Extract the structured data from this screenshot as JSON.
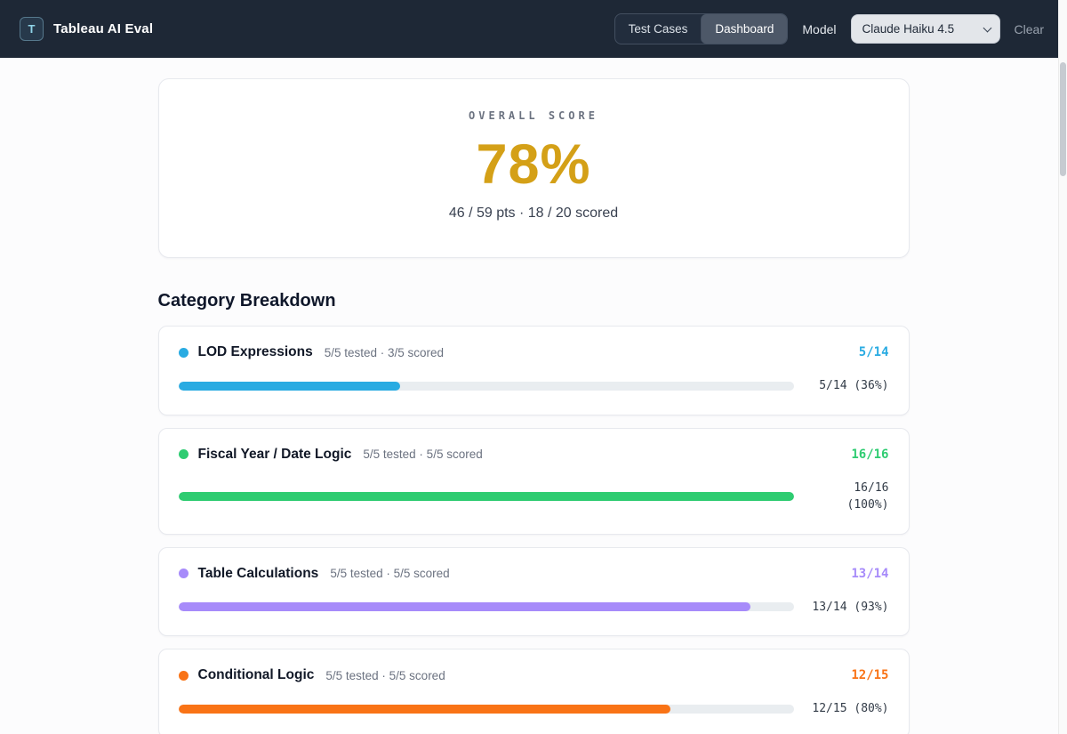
{
  "header": {
    "logo_letter": "T",
    "title": "Tableau AI Eval",
    "tabs": [
      {
        "label": "Test Cases"
      },
      {
        "label": "Dashboard"
      }
    ],
    "active_tab": "Dashboard",
    "model_label": "Model",
    "model_value": "Claude Haiku 4.5",
    "clear_label": "Clear"
  },
  "overall": {
    "label": "OVERALL SCORE",
    "score": "78%",
    "score_color": "#d4a017",
    "detail": "46 / 59 pts · 18 / 20 scored"
  },
  "breakdown": {
    "title": "Category Breakdown",
    "categories": [
      {
        "name": "LOD Expressions",
        "tested": "5/5 tested · 3/5 scored",
        "fraction": "5/14",
        "stat": "5/14 (36%)",
        "percent": 36,
        "color": "#29abe2"
      },
      {
        "name": "Fiscal Year / Date Logic",
        "tested": "5/5 tested · 5/5 scored",
        "fraction": "16/16",
        "stat": "16/16 (100%)",
        "percent": 100,
        "color": "#2ecc71"
      },
      {
        "name": "Table Calculations",
        "tested": "5/5 tested · 5/5 scored",
        "fraction": "13/14",
        "stat": "13/14 (93%)",
        "percent": 93,
        "color": "#a78bfa"
      },
      {
        "name": "Conditional Logic",
        "tested": "5/5 tested · 5/5 scored",
        "fraction": "12/15",
        "stat": "12/15 (80%)",
        "percent": 80,
        "color": "#f97316"
      }
    ]
  }
}
